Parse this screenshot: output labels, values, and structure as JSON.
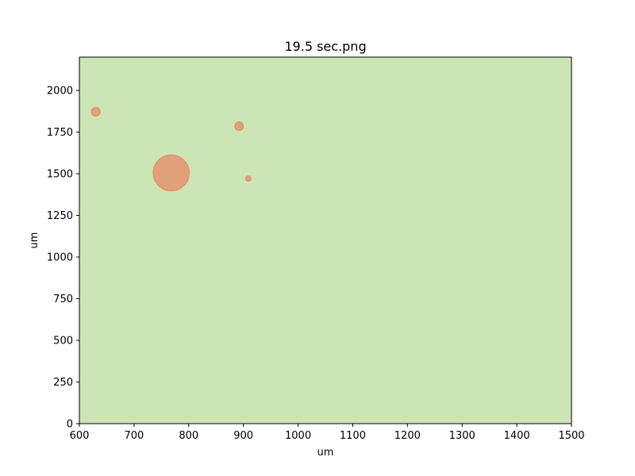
{
  "chart_data": {
    "type": "scatter",
    "title": "19.5 sec.png",
    "xlabel": "um",
    "ylabel": "um",
    "xlim": [
      600,
      1500
    ],
    "ylim": [
      0,
      2200
    ],
    "xticks": [
      600,
      700,
      800,
      900,
      1000,
      1100,
      1200,
      1300,
      1400,
      1500
    ],
    "yticks": [
      0,
      250,
      500,
      750,
      1000,
      1250,
      1500,
      1750,
      2000
    ],
    "grid": false,
    "legend": "none",
    "background_color": "#cce5b4",
    "marker_fill": "#e0a07a",
    "marker_edge": "#e58a6e",
    "points": [
      {
        "x": 630,
        "y": 1872,
        "r_um": 8
      },
      {
        "x": 892,
        "y": 1786,
        "r_um": 8
      },
      {
        "x": 768,
        "y": 1505,
        "r_um": 33
      },
      {
        "x": 909,
        "y": 1471,
        "r_um": 5
      }
    ]
  }
}
